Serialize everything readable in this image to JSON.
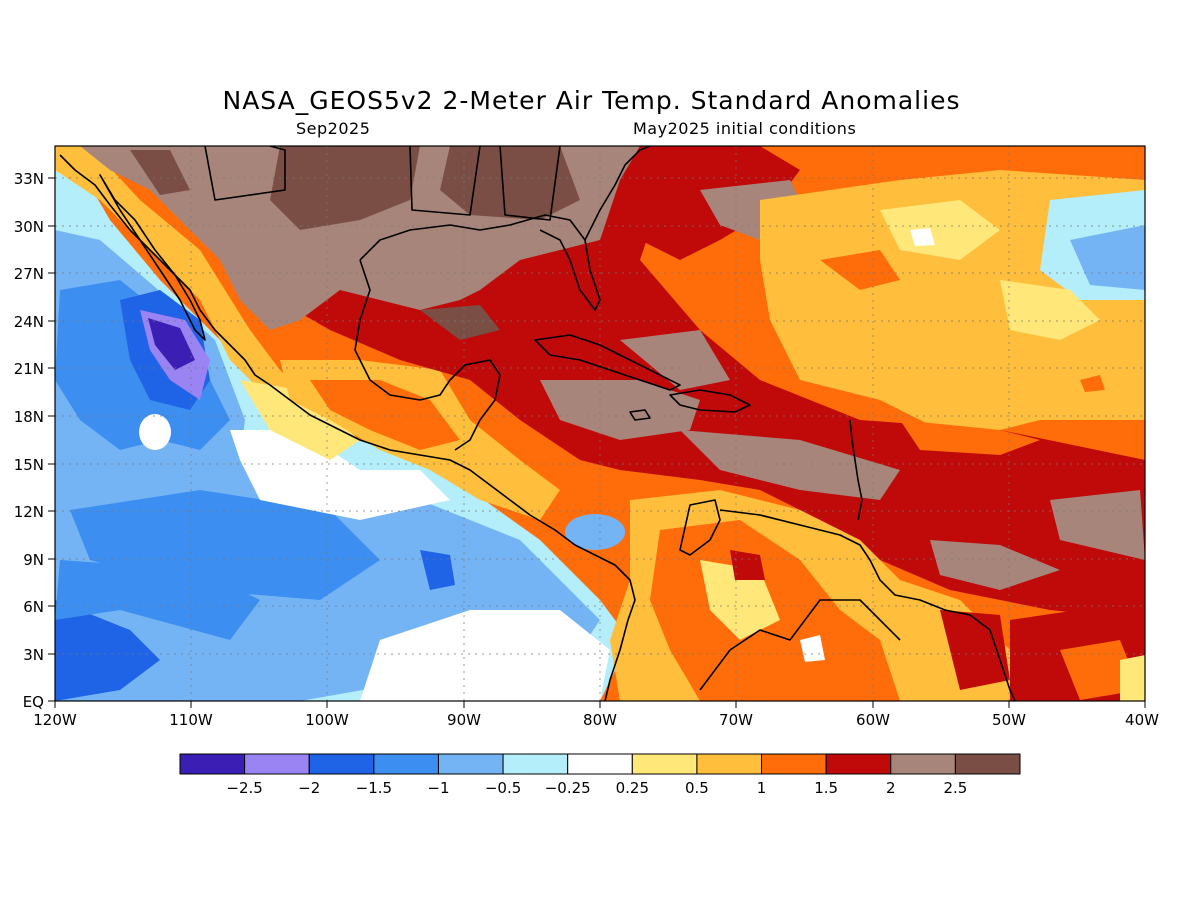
{
  "title": "NASA_GEOS5v2 2-Meter Air Temp. Standard Anomalies",
  "subtitle_left": "Sep2025",
  "subtitle_right": "May2025 initial conditions",
  "map": {
    "lon_range": [
      -120,
      -40
    ],
    "lat_range": [
      0,
      35
    ],
    "lon_ticks": [
      "120W",
      "110W",
      "100W",
      "90W",
      "80W",
      "70W",
      "60W",
      "50W",
      "40W"
    ],
    "lat_ticks": [
      "EQ",
      "3N",
      "6N",
      "9N",
      "12N",
      "15N",
      "18N",
      "21N",
      "24N",
      "27N",
      "30N",
      "33N"
    ],
    "grid": "dotted"
  },
  "colorbar": {
    "colors": [
      "#3b1fb4",
      "#9a83f2",
      "#1f63e6",
      "#3c8ef0",
      "#74b4f5",
      "#b3eefa",
      "#ffffff",
      "#ffe77a",
      "#ffbe3c",
      "#ff6c0a",
      "#c00a0a",
      "#a8857b",
      "#7a4e45"
    ],
    "labels": [
      "-2.5",
      "-2",
      "-1.5",
      "-1",
      "-0.5",
      "-0.25",
      "0.25",
      "0.5",
      "1",
      "1.5",
      "2",
      "2.5"
    ]
  }
}
